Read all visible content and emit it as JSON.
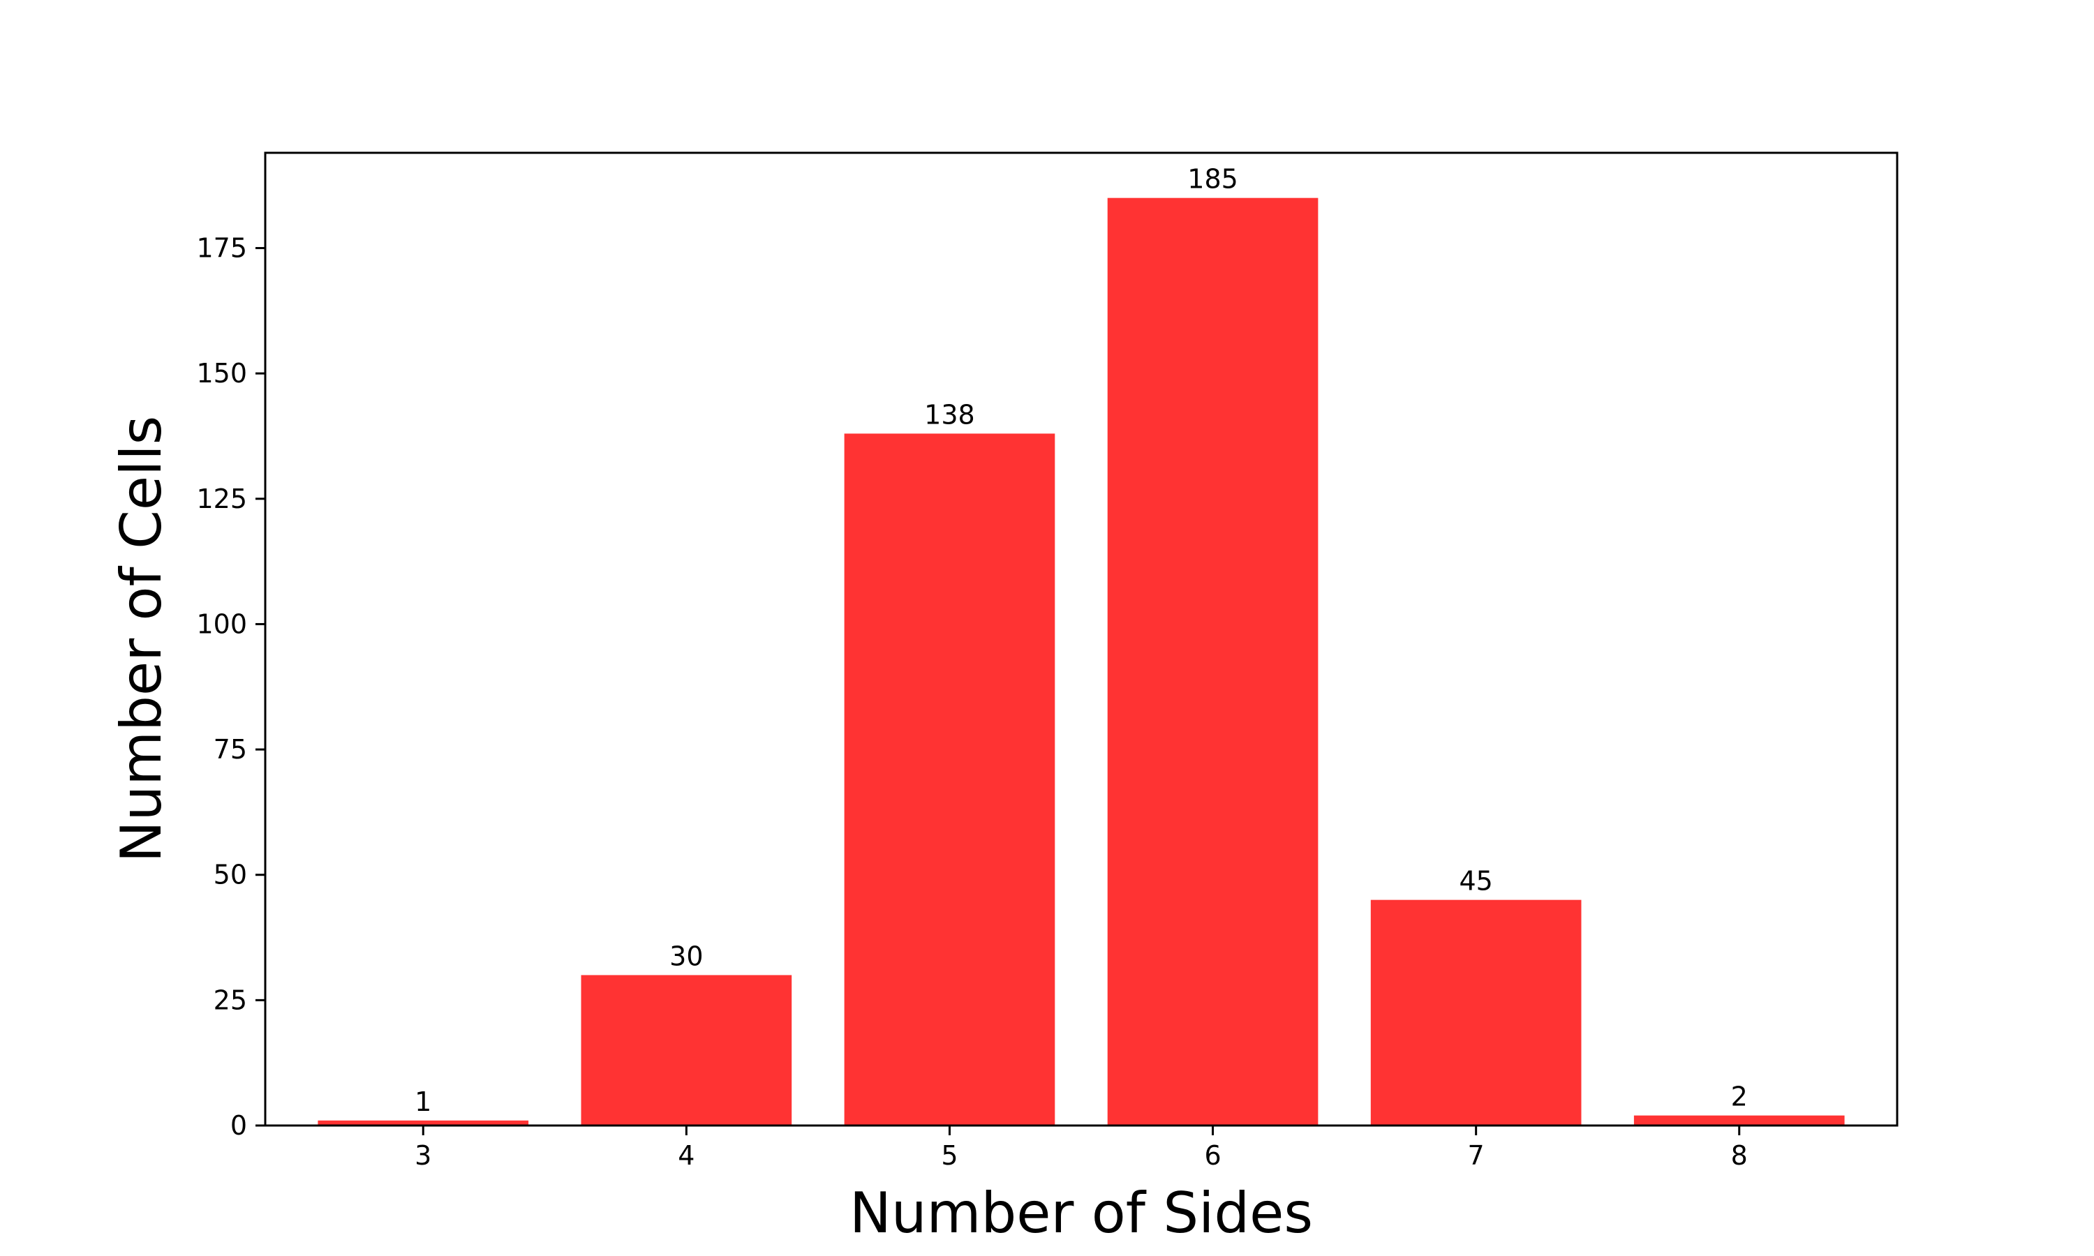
{
  "chart_data": {
    "type": "bar",
    "title": "",
    "xlabel": "Number of Sides",
    "ylabel": "Number of Cells",
    "categories": [
      "3",
      "4",
      "5",
      "6",
      "7",
      "8"
    ],
    "values": [
      1,
      30,
      138,
      185,
      45,
      2
    ],
    "data_labels": [
      "1",
      "30",
      "138",
      "185",
      "45",
      "2"
    ],
    "ylim": [
      0,
      194
    ],
    "yticks": [
      0,
      25,
      50,
      75,
      100,
      125,
      150,
      175
    ],
    "ytick_labels": [
      "0",
      "25",
      "50",
      "75",
      "100",
      "125",
      "150",
      "175"
    ],
    "bar_color": "#ff3333",
    "grid": false,
    "legend": "none"
  }
}
